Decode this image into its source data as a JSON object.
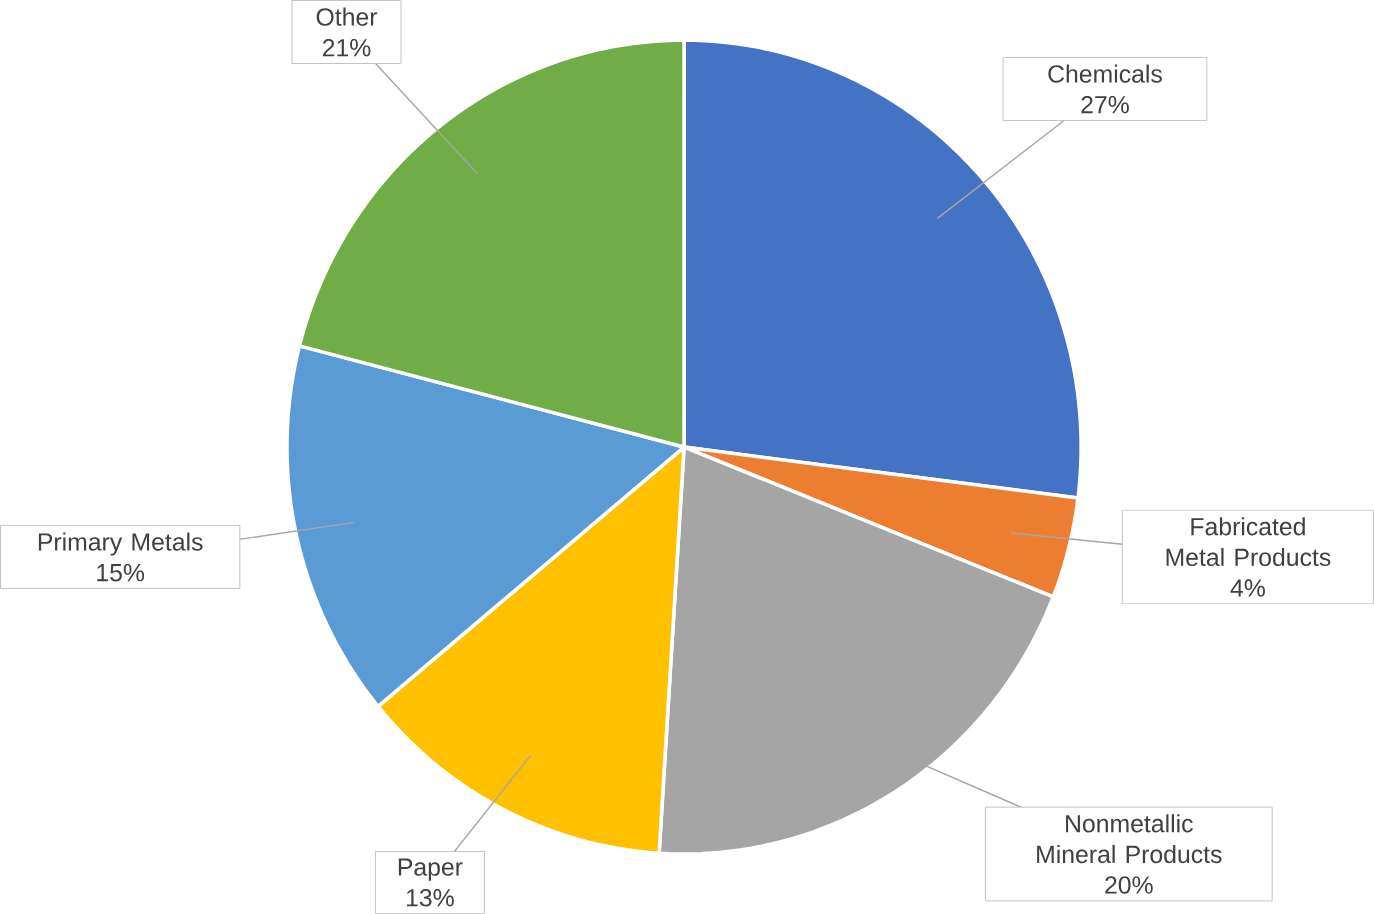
{
  "chart_data": {
    "type": "pie",
    "categories": [
      "Chemicals",
      "Fabricated Metal Products",
      "Nonmetallic Mineral Products",
      "Paper",
      "Primary Metals",
      "Other"
    ],
    "values": [
      27,
      4,
      20,
      13,
      15,
      21
    ],
    "value_labels": [
      "27%",
      "4%",
      "20%",
      "13%",
      "15%",
      "21%"
    ],
    "colors": [
      "#4472c4",
      "#ed7d31",
      "#a5a5a5",
      "#ffc000",
      "#5b9bd5",
      "#70ad47"
    ]
  }
}
